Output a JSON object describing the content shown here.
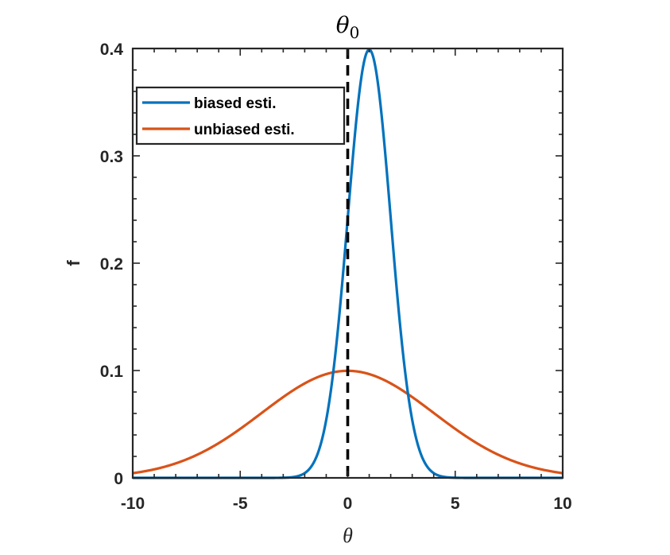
{
  "chart_data": {
    "type": "line",
    "title": "",
    "xlabel": "θ",
    "ylabel": "f",
    "xlim": [
      -10,
      10
    ],
    "ylim": [
      0,
      0.4
    ],
    "xticks": [
      -10,
      -5,
      0,
      5,
      10
    ],
    "xtick_labels": [
      "-10",
      "-5",
      "0",
      "5",
      "10"
    ],
    "yticks": [
      0,
      0.1,
      0.2,
      0.3,
      0.4
    ],
    "ytick_labels": [
      "0",
      "0.1",
      "0.2",
      "0.3",
      "0.4"
    ],
    "grid": false,
    "legend_position": "top-left",
    "series": [
      {
        "name": "biased esti.",
        "color": "#0072BD",
        "distribution": "normal",
        "mean": 1,
        "std": 1,
        "x": [
          -10,
          -3,
          -2,
          -1,
          0,
          0.5,
          1,
          1.5,
          2,
          3,
          4,
          5,
          10
        ],
        "y": [
          0,
          0.0001,
          0.0044,
          0.054,
          0.242,
          0.352,
          0.399,
          0.352,
          0.242,
          0.054,
          0.0044,
          0.0001,
          0
        ]
      },
      {
        "name": "unbiased esti.",
        "color": "#D95319",
        "distribution": "normal",
        "mean": 0,
        "std": 4,
        "x": [
          -10,
          -8,
          -6,
          -4,
          -2,
          0,
          2,
          4,
          6,
          8,
          10
        ],
        "y": [
          0.0044,
          0.0135,
          0.0324,
          0.0605,
          0.088,
          0.0997,
          0.088,
          0.0605,
          0.0324,
          0.0135,
          0.0044
        ]
      }
    ],
    "annotations": [
      {
        "type": "vertical-dashed-line",
        "x": 0,
        "label": "θ",
        "label_subscript": "0",
        "color": "#000000"
      }
    ]
  }
}
